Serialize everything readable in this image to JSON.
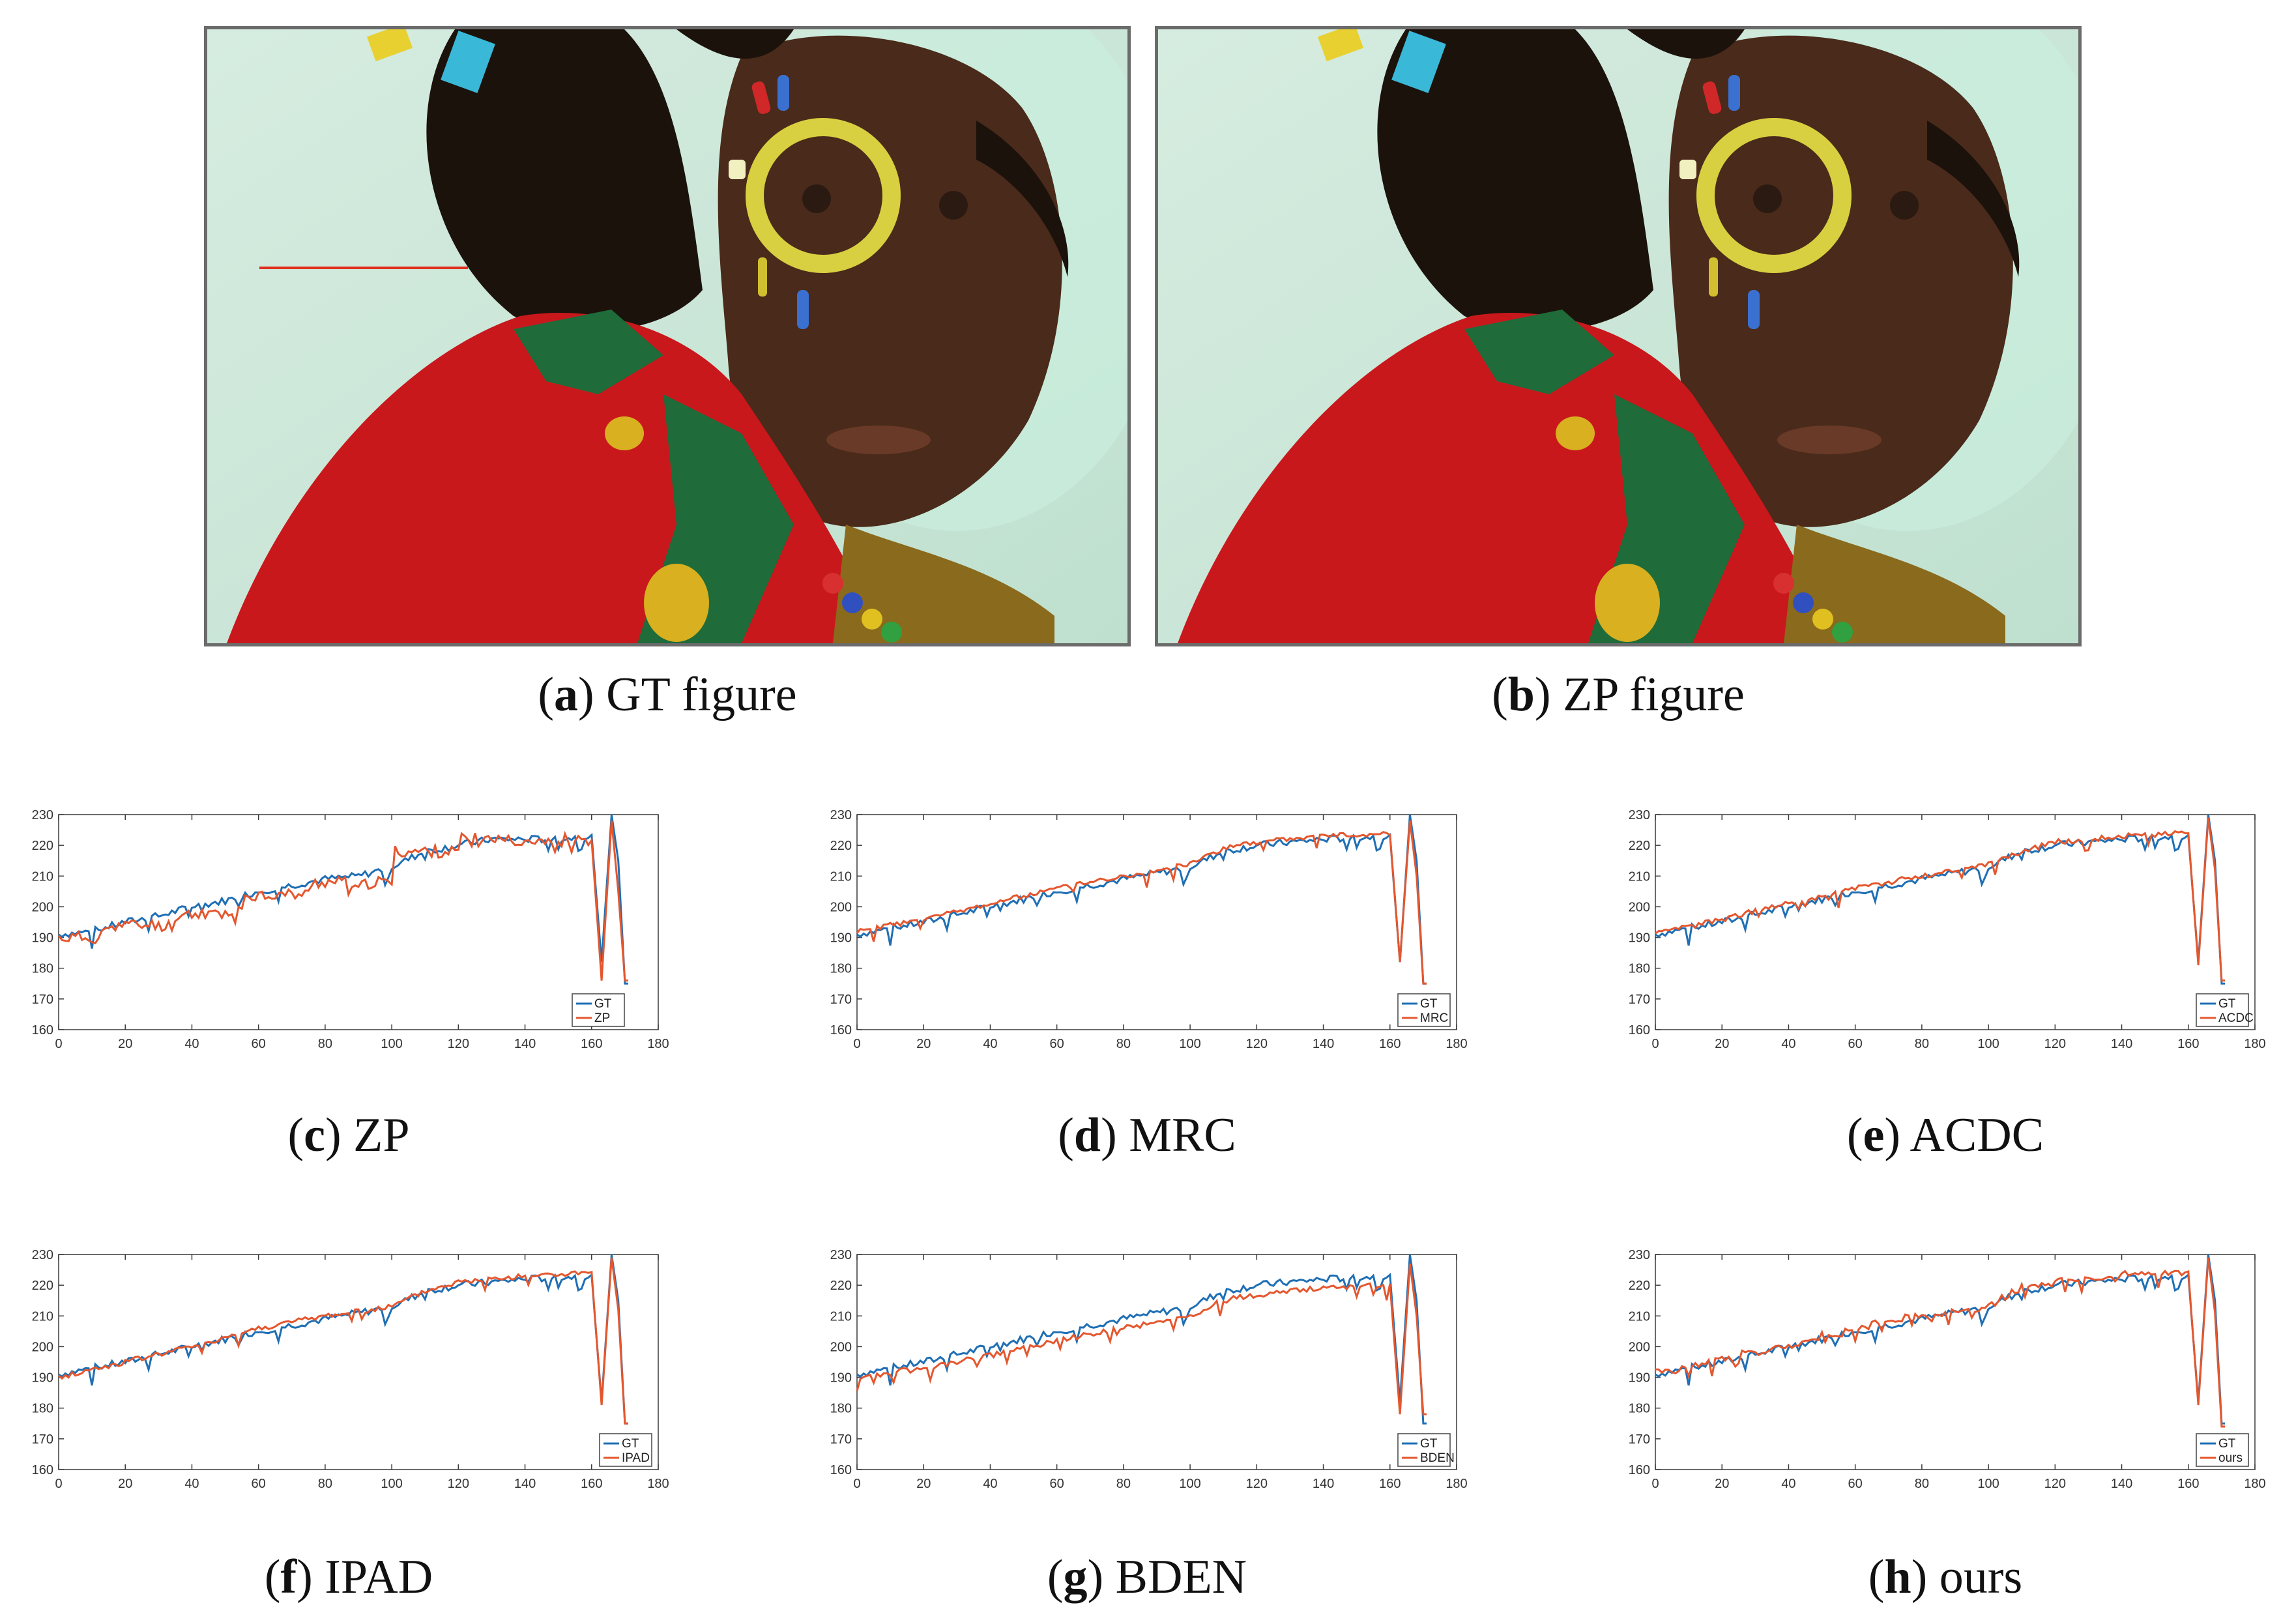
{
  "colors": {
    "gt": "#1f6fb4",
    "method": "#e4572e",
    "photo_border": "#6b6b6b",
    "scanline": "#e0301e"
  },
  "figures": [
    {
      "key": "a",
      "label": "a",
      "title": "GT figure",
      "photo_alt": "girl-portrait-gt"
    },
    {
      "key": "b",
      "label": "b",
      "title": "ZP figure",
      "photo_alt": "girl-portrait-zp"
    }
  ],
  "plots": [
    {
      "key": "c",
      "label": "c",
      "title": "ZP",
      "legend": [
        "GT",
        "ZP"
      ],
      "bias": -3,
      "noise": 2.0,
      "steps": true,
      "drop": 176,
      "seed": 11,
      "chart_data": {
        "type": "line",
        "xlim": [
          0,
          180
        ],
        "ylim": [
          160,
          230
        ],
        "xticks": [
          0,
          20,
          40,
          60,
          80,
          100,
          120,
          140,
          160,
          180
        ],
        "yticks": [
          160,
          170,
          180,
          190,
          200,
          210,
          220,
          230
        ],
        "gt": [
          [
            0,
            191
          ],
          [
            10,
            192
          ],
          [
            20,
            195
          ],
          [
            30,
            197
          ],
          [
            40,
            200
          ],
          [
            50,
            202
          ],
          [
            60,
            205
          ],
          [
            70,
            207
          ],
          [
            80,
            209
          ],
          [
            90,
            210
          ],
          [
            100,
            213
          ],
          [
            110,
            218
          ],
          [
            120,
            220
          ],
          [
            130,
            222
          ],
          [
            140,
            222
          ],
          [
            150,
            222
          ],
          [
            160,
            223
          ],
          [
            163,
            182
          ],
          [
            166,
            230
          ],
          [
            168,
            215
          ],
          [
            170,
            175
          ]
        ],
        "method": [
          [
            0,
            189
          ],
          [
            10,
            189
          ],
          [
            15,
            193
          ],
          [
            35,
            193
          ],
          [
            36,
            198
          ],
          [
            55,
            198
          ],
          [
            56,
            203
          ],
          [
            75,
            203
          ],
          [
            76,
            207
          ],
          [
            100,
            207
          ],
          [
            101,
            217
          ],
          [
            120,
            217
          ],
          [
            121,
            221
          ],
          [
            140,
            221
          ],
          [
            150,
            221
          ],
          [
            160,
            222
          ],
          [
            163,
            176
          ],
          [
            166,
            228
          ],
          [
            168,
            205
          ],
          [
            170,
            176
          ]
        ]
      }
    },
    {
      "key": "d",
      "label": "d",
      "title": "MRC",
      "legend": [
        "GT",
        "MRC"
      ],
      "bias": 0,
      "noise": 0.8,
      "steps": false,
      "drop": 175,
      "seed": 23,
      "chart_data": {
        "type": "line",
        "xlim": [
          0,
          180
        ],
        "ylim": [
          160,
          230
        ],
        "xticks": [
          0,
          20,
          40,
          60,
          80,
          100,
          120,
          140,
          160,
          180
        ],
        "yticks": [
          160,
          170,
          180,
          190,
          200,
          210,
          220,
          230
        ],
        "gt": [
          [
            0,
            191
          ],
          [
            20,
            195
          ],
          [
            40,
            200
          ],
          [
            60,
            205
          ],
          [
            80,
            209
          ],
          [
            100,
            213
          ],
          [
            110,
            218
          ],
          [
            120,
            220
          ],
          [
            140,
            222
          ],
          [
            160,
            223
          ],
          [
            163,
            182
          ],
          [
            166,
            230
          ],
          [
            168,
            215
          ],
          [
            170,
            175
          ]
        ],
        "method": [
          [
            0,
            192
          ],
          [
            20,
            196
          ],
          [
            40,
            201
          ],
          [
            60,
            206
          ],
          [
            80,
            210
          ],
          [
            100,
            214
          ],
          [
            110,
            219
          ],
          [
            120,
            221
          ],
          [
            140,
            223
          ],
          [
            160,
            224
          ],
          [
            163,
            182
          ],
          [
            166,
            228
          ],
          [
            168,
            210
          ],
          [
            170,
            175
          ]
        ]
      }
    },
    {
      "key": "e",
      "label": "e",
      "title": "ACDC",
      "legend": [
        "GT",
        "ACDC"
      ],
      "bias": 0,
      "noise": 0.9,
      "steps": false,
      "drop": 176,
      "seed": 37,
      "chart_data": {
        "type": "line",
        "xlim": [
          0,
          180
        ],
        "ylim": [
          160,
          230
        ],
        "xticks": [
          0,
          20,
          40,
          60,
          80,
          100,
          120,
          140,
          160,
          180
        ],
        "yticks": [
          160,
          170,
          180,
          190,
          200,
          210,
          220,
          230
        ],
        "gt": [
          [
            0,
            191
          ],
          [
            20,
            195
          ],
          [
            40,
            200
          ],
          [
            60,
            205
          ],
          [
            80,
            209
          ],
          [
            100,
            213
          ],
          [
            110,
            218
          ],
          [
            120,
            220
          ],
          [
            140,
            222
          ],
          [
            160,
            223
          ],
          [
            163,
            182
          ],
          [
            166,
            230
          ],
          [
            168,
            215
          ],
          [
            170,
            175
          ]
        ],
        "method": [
          [
            0,
            191
          ],
          [
            20,
            196
          ],
          [
            40,
            201
          ],
          [
            60,
            206
          ],
          [
            80,
            210
          ],
          [
            100,
            214
          ],
          [
            110,
            218
          ],
          [
            120,
            221
          ],
          [
            140,
            223
          ],
          [
            160,
            224
          ],
          [
            163,
            181
          ],
          [
            166,
            229
          ],
          [
            168,
            212
          ],
          [
            170,
            176
          ]
        ]
      }
    },
    {
      "key": "f",
      "label": "f",
      "title": "IPAD",
      "legend": [
        "GT",
        "IPAD"
      ],
      "bias": 0,
      "noise": 0.9,
      "steps": false,
      "drop": 175,
      "seed": 41,
      "chart_data": {
        "type": "line",
        "xlim": [
          0,
          180
        ],
        "ylim": [
          160,
          230
        ],
        "xticks": [
          0,
          20,
          40,
          60,
          80,
          100,
          120,
          140,
          160,
          180
        ],
        "yticks": [
          160,
          170,
          180,
          190,
          200,
          210,
          220,
          230
        ],
        "gt": [
          [
            0,
            191
          ],
          [
            20,
            195
          ],
          [
            40,
            200
          ],
          [
            60,
            205
          ],
          [
            80,
            209
          ],
          [
            100,
            213
          ],
          [
            110,
            218
          ],
          [
            120,
            220
          ],
          [
            140,
            222
          ],
          [
            160,
            223
          ],
          [
            163,
            182
          ],
          [
            166,
            230
          ],
          [
            168,
            215
          ],
          [
            170,
            175
          ]
        ],
        "method": [
          [
            0,
            190
          ],
          [
            20,
            195
          ],
          [
            40,
            200
          ],
          [
            60,
            206
          ],
          [
            80,
            210
          ],
          [
            100,
            213
          ],
          [
            110,
            218
          ],
          [
            120,
            221
          ],
          [
            140,
            223
          ],
          [
            160,
            224
          ],
          [
            163,
            181
          ],
          [
            166,
            229
          ],
          [
            168,
            212
          ],
          [
            170,
            175
          ]
        ]
      }
    },
    {
      "key": "g",
      "label": "g",
      "title": "BDEN",
      "legend": [
        "GT",
        "BDEN"
      ],
      "bias": -2.5,
      "noise": 0.9,
      "steps": false,
      "drop": 178,
      "seed": 53,
      "chart_data": {
        "type": "line",
        "xlim": [
          0,
          180
        ],
        "ylim": [
          160,
          230
        ],
        "xticks": [
          0,
          20,
          40,
          60,
          80,
          100,
          120,
          140,
          160,
          180
        ],
        "yticks": [
          160,
          170,
          180,
          190,
          200,
          210,
          220,
          230
        ],
        "gt": [
          [
            0,
            191
          ],
          [
            20,
            195
          ],
          [
            40,
            200
          ],
          [
            60,
            205
          ],
          [
            80,
            209
          ],
          [
            100,
            213
          ],
          [
            110,
            218
          ],
          [
            120,
            220
          ],
          [
            140,
            222
          ],
          [
            160,
            223
          ],
          [
            163,
            182
          ],
          [
            166,
            230
          ],
          [
            168,
            215
          ],
          [
            170,
            175
          ]
        ],
        "method": [
          [
            0,
            190
          ],
          [
            20,
            193
          ],
          [
            40,
            197
          ],
          [
            60,
            202
          ],
          [
            80,
            206
          ],
          [
            100,
            210
          ],
          [
            110,
            215
          ],
          [
            120,
            217
          ],
          [
            140,
            219
          ],
          [
            160,
            220
          ],
          [
            163,
            178
          ],
          [
            166,
            227
          ],
          [
            168,
            210
          ],
          [
            170,
            178
          ]
        ]
      }
    },
    {
      "key": "h",
      "label": "h",
      "title": "ours",
      "legend": [
        "GT",
        "ours"
      ],
      "bias": 0.3,
      "noise": 0.8,
      "steps": true,
      "drop": 174,
      "seed": 67,
      "chart_data": {
        "type": "line",
        "xlim": [
          0,
          180
        ],
        "ylim": [
          160,
          230
        ],
        "xticks": [
          0,
          20,
          40,
          60,
          80,
          100,
          120,
          140,
          160,
          180
        ],
        "yticks": [
          160,
          170,
          180,
          190,
          200,
          210,
          220,
          230
        ],
        "gt": [
          [
            0,
            191
          ],
          [
            20,
            195
          ],
          [
            40,
            200
          ],
          [
            60,
            205
          ],
          [
            80,
            209
          ],
          [
            100,
            213
          ],
          [
            110,
            218
          ],
          [
            120,
            220
          ],
          [
            140,
            222
          ],
          [
            160,
            223
          ],
          [
            163,
            182
          ],
          [
            166,
            230
          ],
          [
            168,
            215
          ],
          [
            170,
            175
          ]
        ],
        "method": [
          [
            0,
            191
          ],
          [
            20,
            196
          ],
          [
            40,
            200
          ],
          [
            60,
            206
          ],
          [
            80,
            210
          ],
          [
            100,
            213
          ],
          [
            110,
            219
          ],
          [
            120,
            221
          ],
          [
            140,
            223
          ],
          [
            160,
            224
          ],
          [
            163,
            181
          ],
          [
            166,
            229
          ],
          [
            168,
            211
          ],
          [
            170,
            174
          ]
        ]
      }
    }
  ]
}
